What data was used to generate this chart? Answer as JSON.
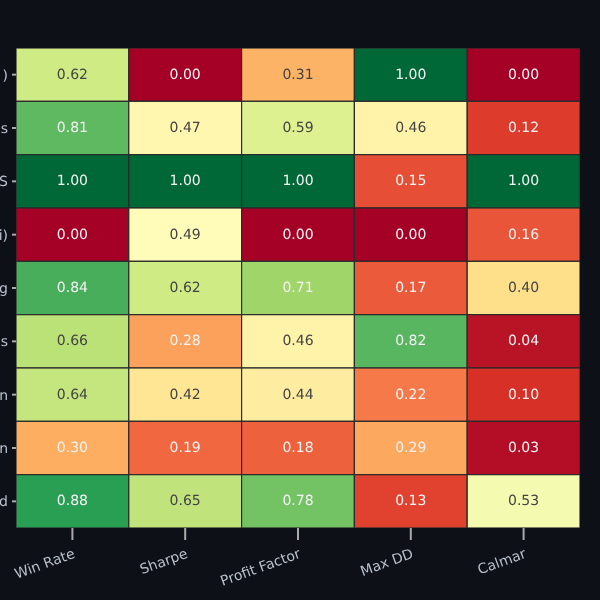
{
  "chart_data": {
    "type": "heatmap",
    "categories": [
      "Win Rate",
      "Sharpe",
      "Profit Factor",
      "Max DD",
      "Calmar"
    ],
    "y_categories": [
      ")",
      "s",
      "S",
      "i)",
      "g",
      "s",
      "n",
      "n",
      "d"
    ],
    "cells": [
      [
        0.62,
        0.0,
        0.31,
        1.0,
        0.0
      ],
      [
        0.81,
        0.47,
        0.59,
        0.46,
        0.12
      ],
      [
        1.0,
        1.0,
        1.0,
        0.15,
        1.0
      ],
      [
        0.0,
        0.49,
        0.0,
        0.0,
        0.16
      ],
      [
        0.84,
        0.62,
        0.71,
        0.17,
        0.4
      ],
      [
        0.66,
        0.28,
        0.46,
        0.82,
        0.04
      ],
      [
        0.64,
        0.42,
        0.44,
        0.22,
        0.1
      ],
      [
        0.3,
        0.19,
        0.18,
        0.29,
        0.03
      ],
      [
        0.88,
        0.65,
        0.78,
        0.13,
        0.53
      ]
    ],
    "cell_labels": [
      [
        "0.62",
        "0.00",
        "0.31",
        "1.00",
        "0.00"
      ],
      [
        "0.81",
        "0.47",
        "0.59",
        "0.46",
        "0.12"
      ],
      [
        "1.00",
        "1.00",
        "1.00",
        "0.15",
        "1.00"
      ],
      [
        "0.00",
        "0.49",
        "0.00",
        "0.00",
        "0.16"
      ],
      [
        "0.84",
        "0.62",
        "0.71",
        "0.17",
        "0.40"
      ],
      [
        "0.66",
        "0.28",
        "0.46",
        "0.82",
        "0.04"
      ],
      [
        "0.64",
        "0.42",
        "0.44",
        "0.22",
        "0.10"
      ],
      [
        "0.30",
        "0.19",
        "0.18",
        "0.29",
        "0.03"
      ],
      [
        "0.88",
        "0.65",
        "0.78",
        "0.13",
        "0.53"
      ]
    ],
    "data_labels": true
  }
}
